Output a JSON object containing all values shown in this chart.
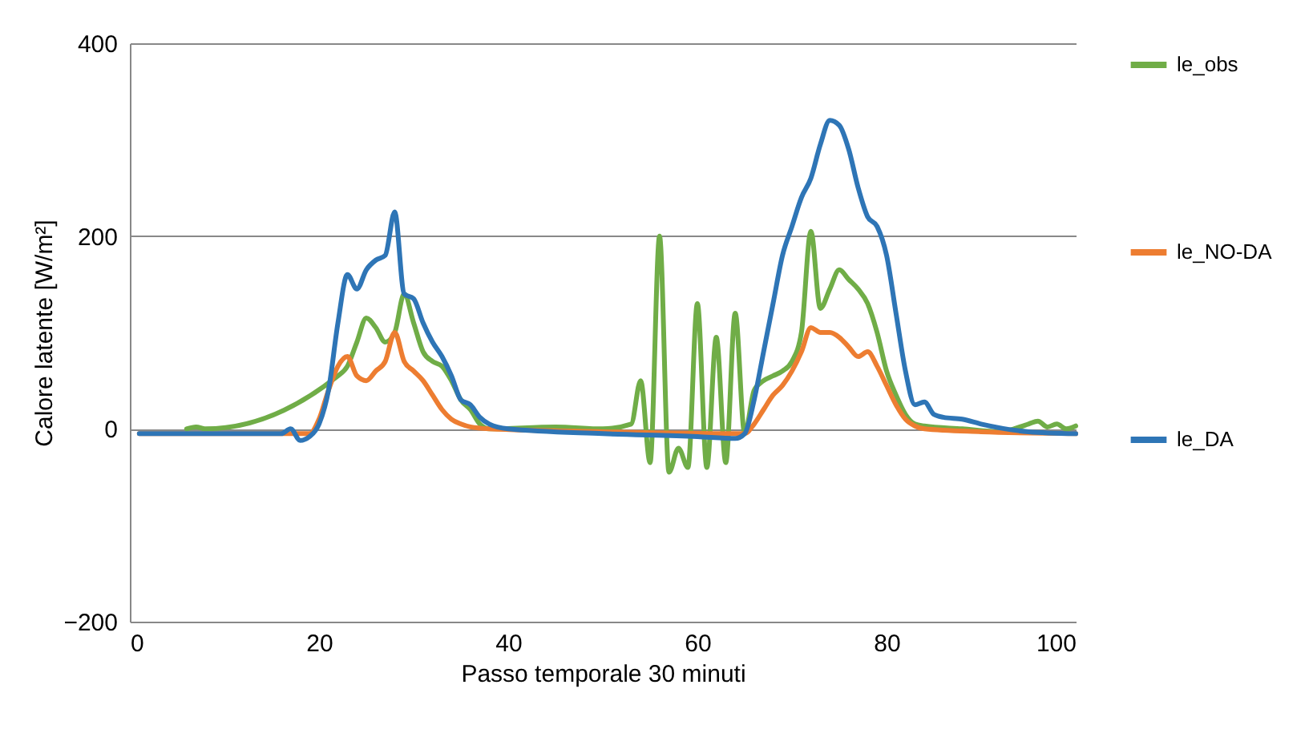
{
  "chart_data": {
    "type": "line",
    "xlabel": "Passo temporale 30 minuti",
    "ylabel": "Calore latente [W/m²]",
    "xlim": [
      0,
      100
    ],
    "xticks": [
      0,
      20,
      40,
      60,
      80,
      100
    ],
    "ylim": [
      -200,
      400
    ],
    "yticks": [
      -200,
      0,
      200,
      400
    ],
    "grid": "y",
    "legend": "right",
    "marker": "none",
    "line_style": "solid",
    "series": [
      {
        "name": "le_obs",
        "color": "#70ad47",
        "x": [
          6,
          7,
          8,
          22,
          23,
          24,
          25,
          26,
          27,
          28,
          29,
          30,
          31,
          32,
          33,
          34,
          35,
          36,
          37,
          38,
          45,
          50,
          53,
          54,
          55,
          56,
          57,
          58,
          59,
          60,
          61,
          62,
          63,
          64,
          65,
          66,
          67,
          68,
          69,
          70,
          71,
          72,
          73,
          74,
          75,
          76,
          77,
          78,
          79,
          80,
          81,
          82,
          83,
          84,
          88,
          92,
          95,
          96,
          97,
          98,
          99,
          100
        ],
        "values": [
          0,
          2,
          0,
          55,
          65,
          90,
          115,
          105,
          90,
          100,
          140,
          110,
          80,
          70,
          65,
          50,
          30,
          20,
          5,
          0,
          2,
          0,
          5,
          50,
          -35,
          200,
          -45,
          -20,
          -40,
          130,
          -40,
          95,
          -35,
          120,
          -5,
          40,
          50,
          55,
          60,
          70,
          100,
          205,
          125,
          145,
          165,
          155,
          145,
          130,
          100,
          60,
          35,
          15,
          5,
          3,
          0,
          -3,
          5,
          8,
          2,
          5,
          0,
          3
        ]
      },
      {
        "name": "le_NO-DA",
        "color": "#ed7d31",
        "x": [
          1,
          19,
          20,
          21,
          22,
          23,
          24,
          25,
          26,
          27,
          28,
          29,
          30,
          31,
          32,
          33,
          34,
          35,
          36,
          38,
          50,
          64,
          65,
          66,
          67,
          68,
          69,
          70,
          71,
          72,
          73,
          74,
          75,
          76,
          77,
          78,
          79,
          80,
          81,
          82,
          83,
          84,
          90,
          100
        ],
        "values": [
          -5,
          -5,
          10,
          40,
          65,
          75,
          55,
          50,
          60,
          70,
          100,
          70,
          60,
          50,
          35,
          20,
          10,
          5,
          2,
          0,
          -3,
          -5,
          -5,
          5,
          20,
          35,
          45,
          60,
          80,
          105,
          100,
          100,
          95,
          85,
          75,
          80,
          65,
          45,
          25,
          10,
          3,
          0,
          -3,
          -5
        ]
      },
      {
        "name": "le_DA",
        "color": "#2e75b6",
        "x": [
          1,
          16,
          17,
          18,
          19,
          20,
          21,
          22,
          23,
          24,
          25,
          26,
          27,
          28,
          29,
          30,
          31,
          32,
          33,
          34,
          35,
          36,
          37,
          38,
          40,
          50,
          60,
          64,
          65,
          66,
          67,
          68,
          69,
          70,
          71,
          72,
          73,
          74,
          75,
          76,
          77,
          78,
          79,
          80,
          81,
          82,
          83,
          84,
          85,
          86,
          88,
          90,
          95,
          100
        ],
        "values": [
          -5,
          -5,
          0,
          -12,
          -8,
          5,
          40,
          110,
          160,
          145,
          165,
          175,
          180,
          225,
          140,
          135,
          110,
          90,
          75,
          55,
          30,
          25,
          12,
          5,
          0,
          -5,
          -8,
          -10,
          -5,
          30,
          80,
          130,
          180,
          210,
          240,
          260,
          295,
          320,
          315,
          290,
          250,
          220,
          210,
          180,
          120,
          60,
          25,
          28,
          15,
          12,
          10,
          5,
          -3,
          -5
        ]
      }
    ]
  }
}
